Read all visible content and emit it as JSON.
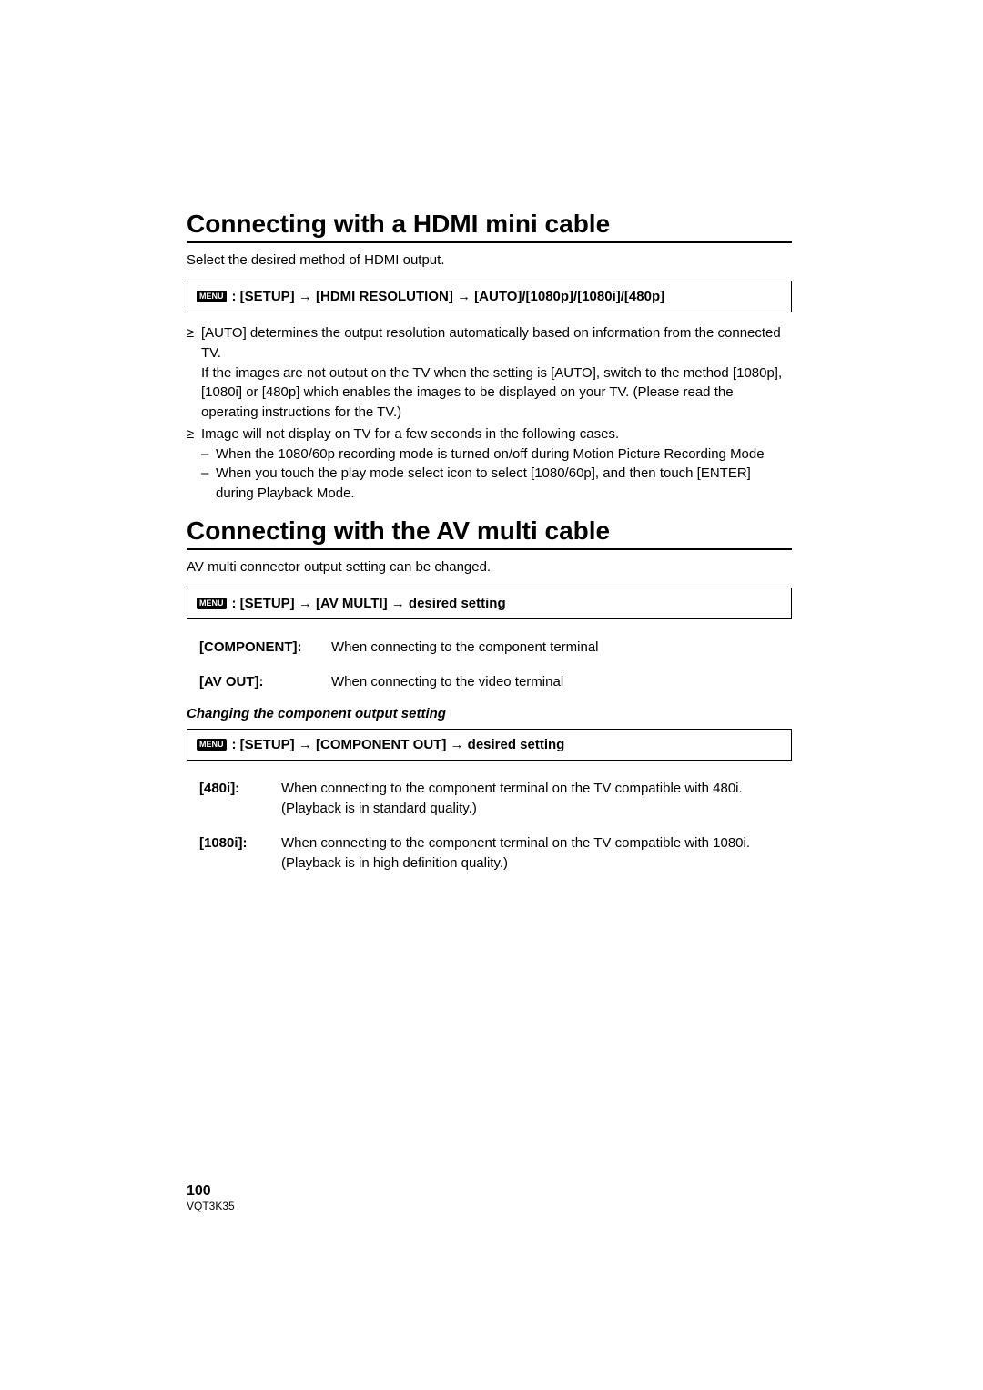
{
  "section1": {
    "heading": "Connecting with a HDMI mini cable",
    "intro": "Select the desired method of HDMI output.",
    "menu_badge": "MENU",
    "menu_path": ": [SETUP] → [HDMI RESOLUTION] → [AUTO]/[1080p]/[1080i]/[480p]",
    "bullets": [
      {
        "text": "[AUTO] determines the output resolution automatically based on information from the connected TV.\nIf the images are not output on the TV when the setting is [AUTO], switch to the method [1080p], [1080i] or [480p] which enables the images to be displayed on your TV. (Please read the operating instructions for the TV.)"
      },
      {
        "text": "Image will not display on TV for a few seconds in the following cases.",
        "subs": [
          "When the 1080/60p recording mode is turned on/off during Motion Picture Recording Mode",
          "When you touch the play mode select icon to select [1080/60p], and then touch [ENTER] during Playback Mode."
        ]
      }
    ]
  },
  "section2": {
    "heading": "Connecting with the AV multi cable",
    "intro": "AV multi connector output setting can be changed.",
    "menu_badge": "MENU",
    "menu_path": ": [SETUP] → [AV MULTI] → desired setting",
    "options": [
      {
        "label": "[COMPONENT]:",
        "desc": "When connecting to the component terminal"
      },
      {
        "label": "[AV OUT]:",
        "desc": "When connecting to the video terminal"
      }
    ],
    "sub_heading": "Changing the component output setting",
    "menu2_badge": "MENU",
    "menu2_path": ": [SETUP] → [COMPONENT OUT] → desired setting",
    "options2": [
      {
        "label": "[480i]:",
        "desc": "When connecting to the component terminal on the TV compatible with 480i. (Playback is in standard quality.)"
      },
      {
        "label": "[1080i]:",
        "desc": "When connecting to the component terminal on the TV compatible with 1080i. (Playback is in high definition quality.)"
      }
    ]
  },
  "footer": {
    "page_number": "100",
    "doc_id": "VQT3K35"
  },
  "colors": {
    "text": "#000000",
    "background": "#ffffff",
    "badge_bg": "#000000",
    "badge_text": "#ffffff"
  }
}
